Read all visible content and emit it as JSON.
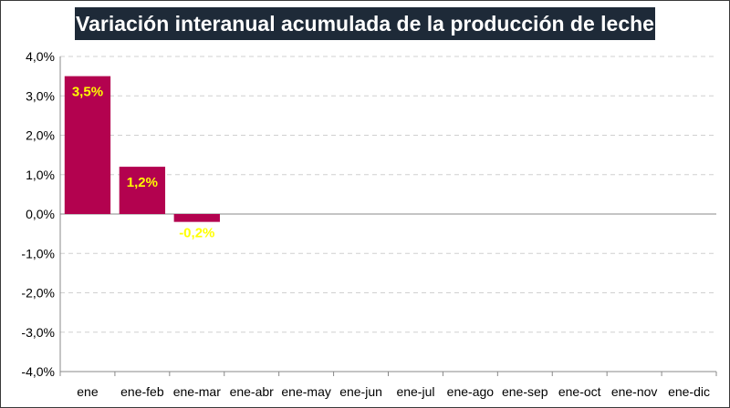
{
  "chart_data": {
    "type": "bar",
    "title": "Variación interanual acumulada de la producción de leche",
    "categories": [
      "ene",
      "ene-feb",
      "ene-mar",
      "ene-abr",
      "ene-may",
      "ene-jun",
      "ene-jul",
      "ene-ago",
      "ene-sep",
      "ene-oct",
      "ene-nov",
      "ene-dic"
    ],
    "values": [
      3.5,
      1.2,
      -0.2,
      null,
      null,
      null,
      null,
      null,
      null,
      null,
      null,
      null
    ],
    "data_labels": [
      "3,5%",
      "1,2%",
      "-0,2%",
      "",
      "",
      "",
      "",
      "",
      "",
      "",
      "",
      ""
    ],
    "ylim": [
      -4,
      4
    ],
    "yticks": [
      4,
      3,
      2,
      1,
      0,
      -1,
      -2,
      -3,
      -4
    ],
    "ytick_labels": [
      "4,0%",
      "3,0%",
      "2,0%",
      "1,0%",
      "0,0%",
      "-1,0%",
      "-2,0%",
      "-3,0%",
      "-4,0%"
    ],
    "xlabel": "",
    "ylabel": "",
    "grid": true,
    "colors": {
      "bar": "#b3024f",
      "label_positive": "#ffff00",
      "label_negative": "#ffff00",
      "title_bg": "#1e2a38",
      "title_text": "#ffffff",
      "grid": "#d0d0d0",
      "axis": "#888888"
    }
  }
}
